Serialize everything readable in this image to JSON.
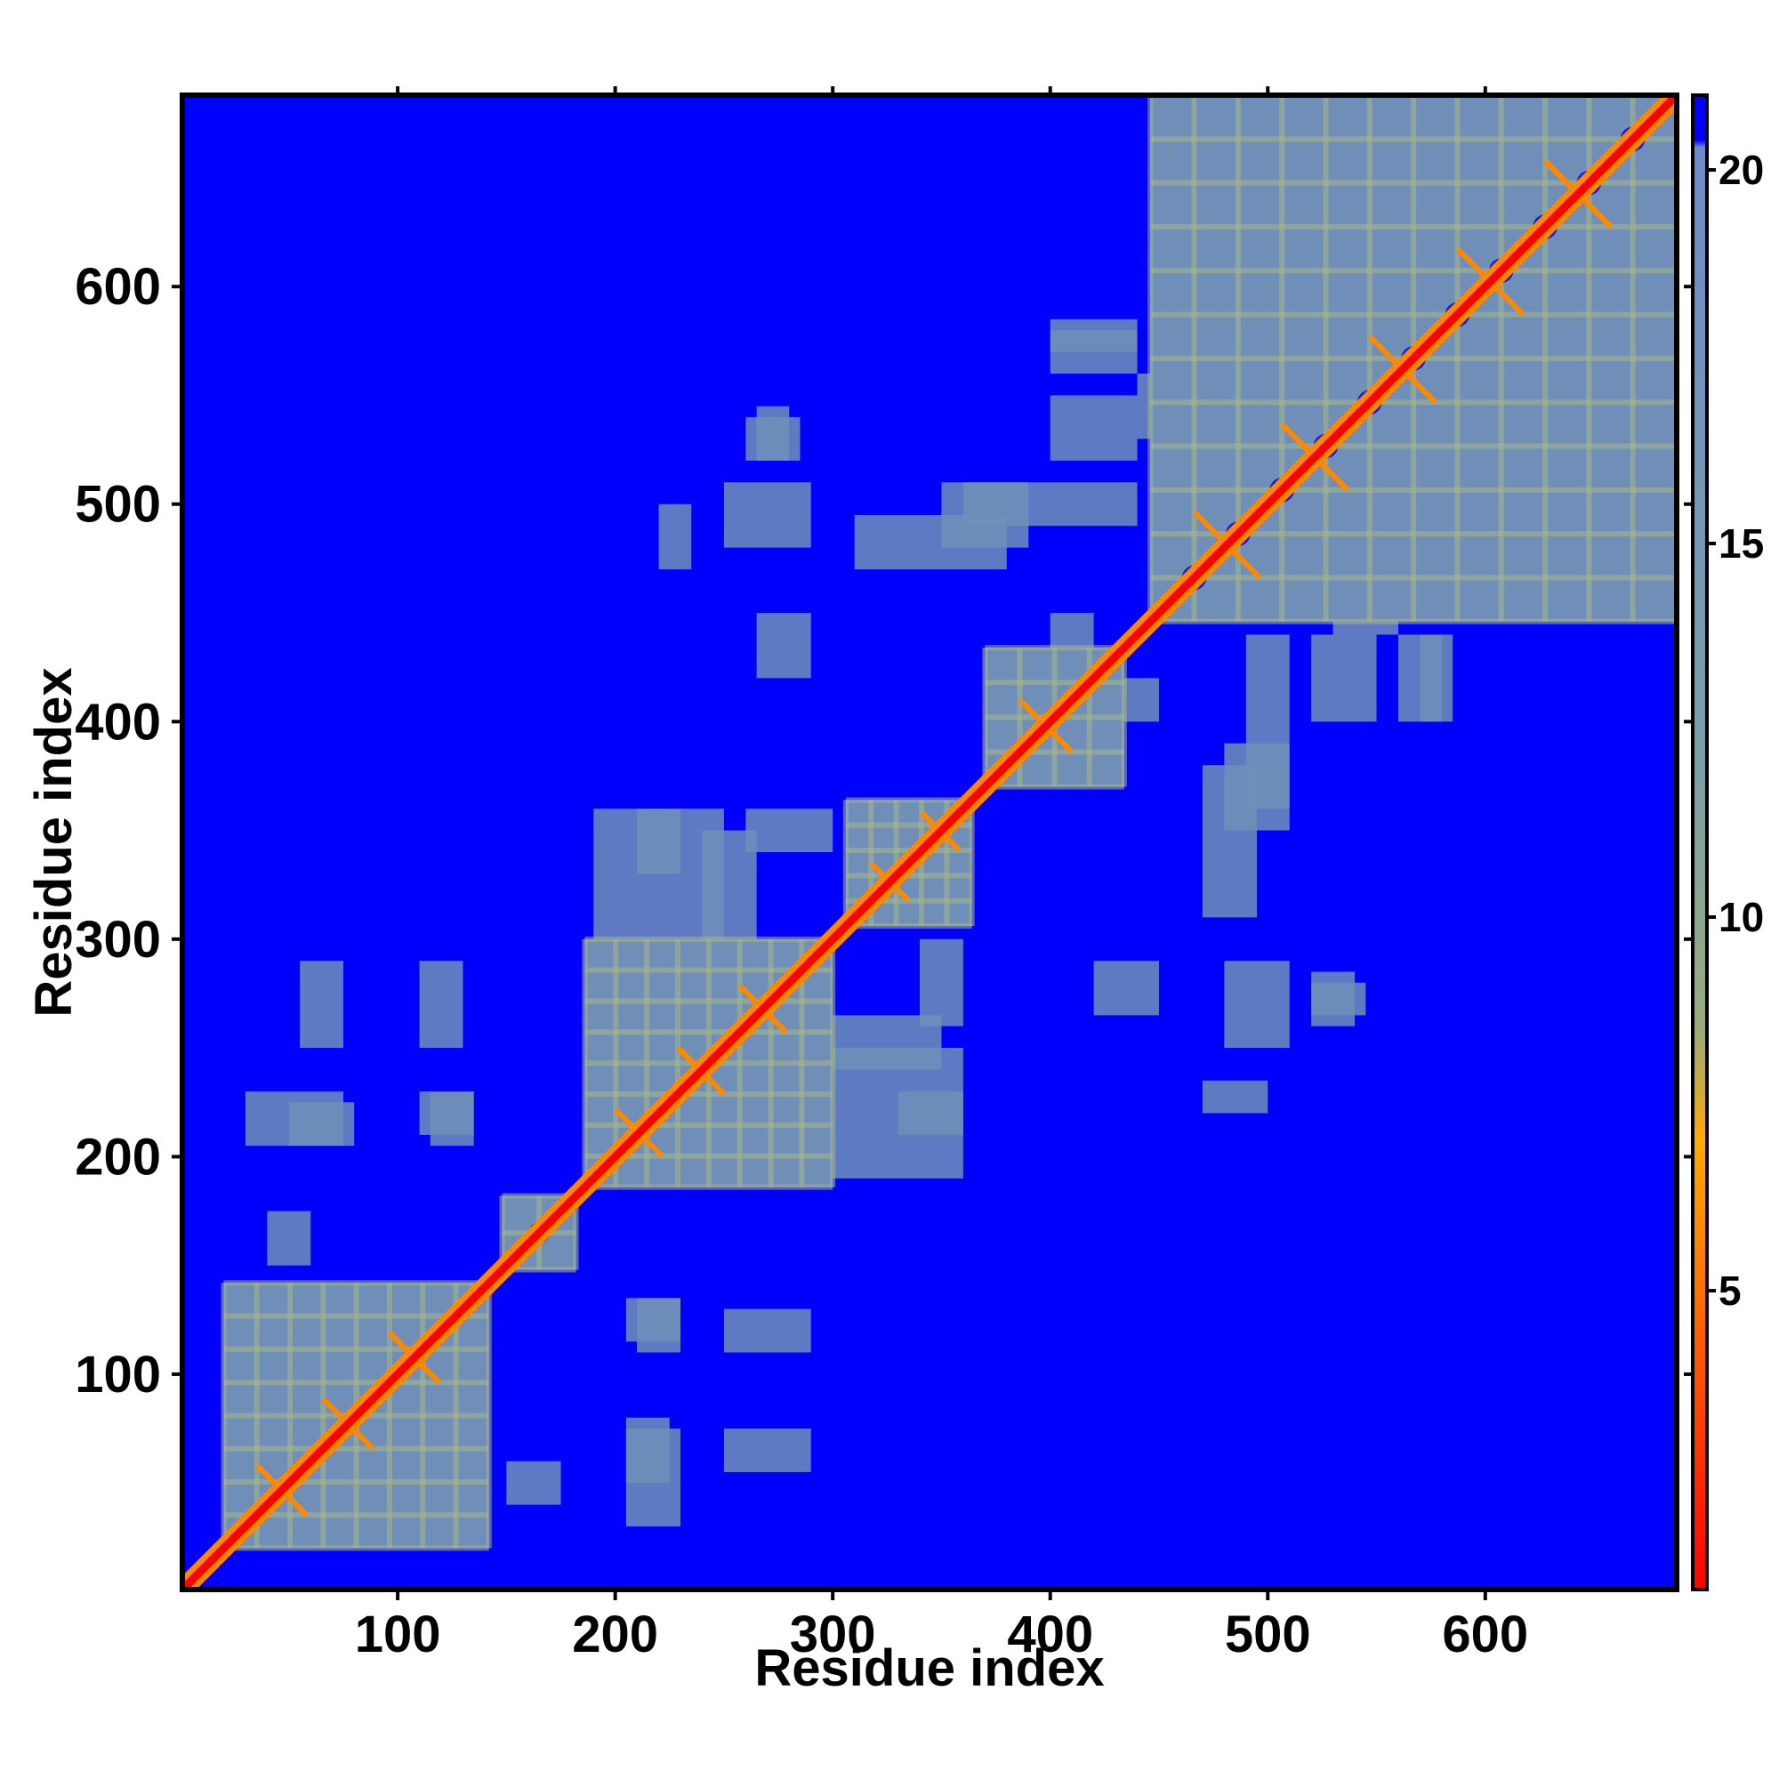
{
  "chart_data": {
    "type": "heatmap",
    "title": "",
    "xlabel": "Residue index",
    "ylabel": "Residue index",
    "xlim": [
      1,
      688
    ],
    "ylim": [
      1,
      688
    ],
    "xticks": [
      100,
      200,
      300,
      400,
      500,
      600
    ],
    "yticks": [
      100,
      200,
      300,
      400,
      500,
      600
    ],
    "colorbar": {
      "range": [
        1,
        21
      ],
      "ticks": [
        5,
        10,
        15,
        20
      ],
      "stops": [
        {
          "value": 1,
          "color": "#ff0000"
        },
        {
          "value": 4,
          "color": "#ff5500"
        },
        {
          "value": 7,
          "color": "#ffaa00"
        },
        {
          "value": 8.5,
          "color": "#9aaa7a"
        },
        {
          "value": 12,
          "color": "#7aa0a8"
        },
        {
          "value": 20.3,
          "color": "#6b8cc8"
        },
        {
          "value": 20.4,
          "color": "#0000ff"
        },
        {
          "value": 21,
          "color": "#0000ff"
        }
      ]
    },
    "background_color": "#0000ff",
    "contact_color": "#6f8fb8",
    "near_color": "#a8b88a",
    "close_color": "#ff8800",
    "diagonal_color": "#ff0000",
    "domains": [
      {
        "start": 20,
        "end": 142,
        "strands": 8
      },
      {
        "start": 148,
        "end": 182,
        "strands": 2
      },
      {
        "start": 186,
        "end": 300,
        "strands": 8
      },
      {
        "start": 306,
        "end": 364,
        "strands": 5
      },
      {
        "start": 370,
        "end": 434,
        "strands": 4
      },
      {
        "start": 446,
        "end": 688,
        "strands": 12
      }
    ],
    "off_diagonal_contacts": [
      {
        "x": [
          30,
          75
        ],
        "y": [
          205,
          230
        ]
      },
      {
        "x": [
          115,
          135
        ],
        "y": [
          205,
          230
        ]
      },
      {
        "x": [
          205,
          225
        ],
        "y": [
          50,
          80
        ]
      },
      {
        "x": [
          250,
          290
        ],
        "y": [
          55,
          75
        ]
      },
      {
        "x": [
          210,
          230
        ],
        "y": [
          110,
          135
        ]
      },
      {
        "x": [
          250,
          290
        ],
        "y": [
          110,
          130
        ]
      },
      {
        "x": [
          190,
          250
        ],
        "y": [
          300,
          360
        ]
      },
      {
        "x": [
          260,
          300
        ],
        "y": [
          340,
          360
        ]
      },
      {
        "x": [
          260,
          290
        ],
        "y": [
          200,
          220
        ]
      },
      {
        "x": [
          300,
          350
        ],
        "y": [
          240,
          265
        ]
      },
      {
        "x": [
          330,
          360
        ],
        "y": [
          210,
          230
        ]
      },
      {
        "x": [
          310,
          380
        ],
        "y": [
          470,
          495
        ]
      },
      {
        "x": [
          260,
          285
        ],
        "y": [
          520,
          540
        ]
      },
      {
        "x": [
          360,
          440
        ],
        "y": [
          490,
          510
        ]
      },
      {
        "x": [
          425,
          450
        ],
        "y": [
          400,
          420
        ]
      },
      {
        "x": [
          480,
          510
        ],
        "y": [
          250,
          290
        ]
      },
      {
        "x": [
          520,
          545
        ],
        "y": [
          265,
          280
        ]
      },
      {
        "x": [
          420,
          450
        ],
        "y": [
          265,
          290
        ]
      },
      {
        "x": [
          480,
          510
        ],
        "y": [
          350,
          390
        ]
      },
      {
        "x": [
          520,
          550
        ],
        "y": [
          400,
          440
        ]
      },
      {
        "x": [
          570,
          585
        ],
        "y": [
          400,
          440
        ]
      },
      {
        "x": [
          470,
          500
        ],
        "y": [
          220,
          235
        ]
      },
      {
        "x": [
          440,
          460
        ],
        "y": [
          530,
          560
        ]
      },
      {
        "x": [
          400,
          440
        ],
        "y": [
          560,
          580
        ]
      },
      {
        "x": [
          85,
          110
        ],
        "y": [
          20,
          40
        ]
      },
      {
        "x": [
          150,
          175
        ],
        "y": [
          40,
          60
        ]
      }
    ]
  }
}
